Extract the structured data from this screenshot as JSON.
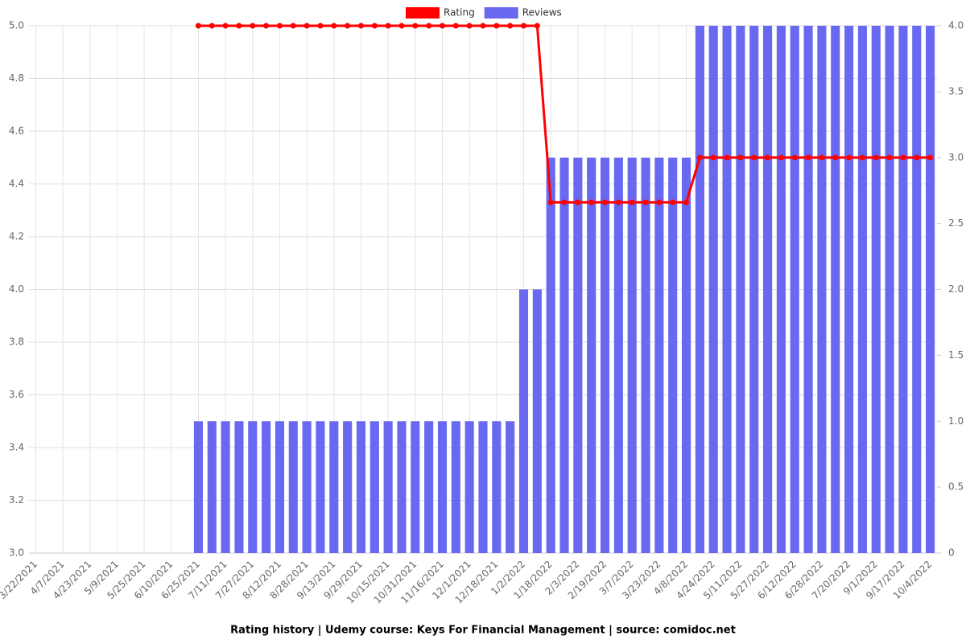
{
  "chart_data": {
    "type": "combo",
    "title": "Rating history | Udemy course: Keys For Financial Management | source: comidoc.net",
    "categories": [
      "3/22/2021",
      null,
      "4/7/2021",
      null,
      "4/23/2021",
      null,
      "5/9/2021",
      null,
      "5/25/2021",
      null,
      "6/10/2021",
      null,
      "6/25/2021",
      null,
      "7/11/2021",
      null,
      "7/27/2021",
      null,
      "8/12/2021",
      null,
      "8/28/2021",
      null,
      "9/13/2021",
      null,
      "9/29/2021",
      null,
      "10/15/2021",
      null,
      "10/31/2021",
      null,
      "11/16/2021",
      null,
      "12/1/2021",
      null,
      "12/18/2021",
      null,
      "1/2/2022",
      null,
      "1/18/2022",
      null,
      "2/3/2022",
      null,
      "2/19/2022",
      null,
      "3/7/2022",
      null,
      "3/23/2022",
      null,
      "4/8/2022",
      null,
      "4/24/2022",
      null,
      "5/11/2022",
      null,
      "5/27/2022",
      null,
      "6/12/2022",
      null,
      "6/28/2022",
      null,
      "7/20/2022",
      null,
      "9/1/2022",
      null,
      "9/17/2022",
      null,
      "10/4/2022"
    ],
    "series": [
      {
        "name": "Rating",
        "type": "line",
        "color": "#ff0000",
        "values": [
          null,
          null,
          null,
          null,
          null,
          null,
          null,
          null,
          null,
          null,
          null,
          null,
          5,
          5,
          5,
          5,
          5,
          5,
          5,
          5,
          5,
          5,
          5,
          5,
          5,
          5,
          5,
          5,
          5,
          5,
          5,
          5,
          5,
          5,
          5,
          5,
          5,
          5,
          4.33,
          4.33,
          4.33,
          4.33,
          4.33,
          4.33,
          4.33,
          4.33,
          4.33,
          4.33,
          4.33,
          4.5,
          4.5,
          4.5,
          4.5,
          4.5,
          4.5,
          4.5,
          4.5,
          4.5,
          4.5,
          4.5,
          4.5,
          4.5,
          4.5,
          4.5,
          4.5,
          4.5,
          4.5
        ]
      },
      {
        "name": "Reviews",
        "type": "bar",
        "axis": "y2",
        "color": "#6868f0",
        "values": [
          0,
          0,
          0,
          0,
          0,
          0,
          0,
          0,
          0,
          0,
          0,
          0,
          1,
          1,
          1,
          1,
          1,
          1,
          1,
          1,
          1,
          1,
          1,
          1,
          1,
          1,
          1,
          1,
          1,
          1,
          1,
          1,
          1,
          1,
          1,
          1,
          2,
          2,
          3,
          3,
          3,
          3,
          3,
          3,
          3,
          3,
          3,
          3,
          3,
          4,
          4,
          4,
          4,
          4,
          4,
          4,
          4,
          4,
          4,
          4,
          4,
          4,
          4,
          4,
          4,
          4,
          4
        ]
      }
    ],
    "ylim": [
      3,
      5
    ],
    "yticks": [
      {
        "value": 3,
        "label": "3.0"
      },
      3.2,
      3.4,
      3.6,
      3.8,
      {
        "value": 4,
        "label": "4.0"
      },
      4.2,
      4.4,
      4.6,
      4.8,
      {
        "value": 5,
        "label": "5.0"
      }
    ],
    "y2lim": [
      0,
      4
    ],
    "y2ticks": [
      0,
      0.5,
      {
        "value": 1,
        "label": "1.0"
      },
      1.5,
      {
        "value": 2,
        "label": "2.0"
      },
      2.5,
      {
        "value": 3,
        "label": "3.0"
      },
      3.5,
      {
        "value": 4,
        "label": "4.0"
      }
    ],
    "grid": true,
    "legend": "top"
  }
}
